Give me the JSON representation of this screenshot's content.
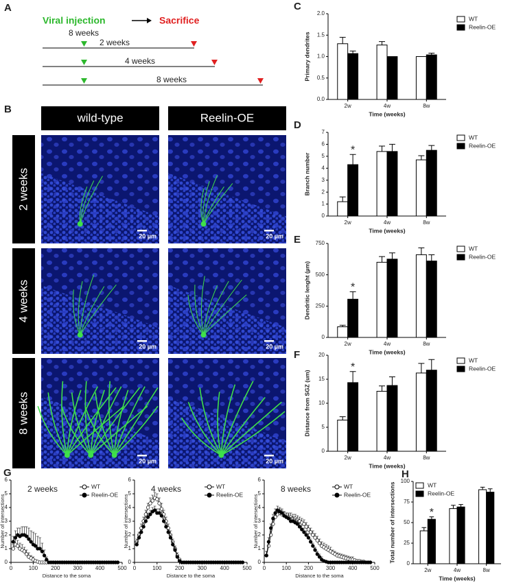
{
  "timeline": {
    "panel": "A",
    "start": "Viral injection",
    "end": "Sacrifice",
    "age": "8 weeks",
    "durations": [
      "2 weeks",
      "4 weeks",
      "8 weeks"
    ]
  },
  "images": {
    "panel": "B",
    "columns": [
      "wild-type",
      "Reelin-OE"
    ],
    "rows": [
      "2 weeks",
      "4 weeks",
      "8 weeks"
    ],
    "scale_bar": "20 µm"
  },
  "chart_data": [
    {
      "type": "bar",
      "panel": "C",
      "ylabel": "Primary dendrites",
      "xlabel": "Time (weeks)",
      "categories": [
        "2w",
        "4w",
        "8w"
      ],
      "legend": "right",
      "ylim": [
        0,
        2
      ],
      "yticks": [
        {
          "value": 0,
          "label": "0.0"
        },
        {
          "value": 0.5,
          "label": "0.5"
        },
        {
          "value": 1,
          "label": "1.0"
        },
        {
          "value": 1.5,
          "label": "1.5"
        },
        {
          "value": 2,
          "label": "2.0"
        }
      ],
      "series": [
        {
          "name": "WT",
          "color": "#ffffff",
          "values": [
            1.3,
            1.27,
            1.0
          ],
          "errors": [
            0.15,
            0.08,
            0
          ]
        },
        {
          "name": "Reelin-OE",
          "color": "#000000",
          "values": [
            1.07,
            1.0,
            1.04
          ],
          "errors": [
            0.06,
            0,
            0.04
          ]
        }
      ]
    },
    {
      "type": "bar",
      "panel": "D",
      "ylabel": "Branch number",
      "xlabel": "Time (weeks)",
      "categories": [
        "2w",
        "4w",
        "8w"
      ],
      "legend": "right",
      "annotation": "*",
      "ylim": [
        0,
        7
      ],
      "yticks": [
        0,
        1,
        2,
        3,
        4,
        5,
        6,
        7
      ],
      "series": [
        {
          "name": "WT",
          "color": "#ffffff",
          "values": [
            1.2,
            5.4,
            4.7
          ],
          "errors": [
            0.4,
            0.45,
            0.35
          ]
        },
        {
          "name": "Reelin-OE",
          "color": "#000000",
          "values": [
            4.3,
            5.4,
            5.5
          ],
          "errors": [
            0.85,
            0.6,
            0.4
          ]
        }
      ]
    },
    {
      "type": "bar",
      "panel": "E",
      "ylabel": "Dendritic lenght (µm)",
      "xlabel": "Time (weeks)",
      "categories": [
        "2w",
        "4w",
        "8w"
      ],
      "legend": "right",
      "annotation": "*",
      "ylim": [
        0,
        750
      ],
      "yticks": [
        0,
        250,
        500,
        750
      ],
      "series": [
        {
          "name": "WT",
          "color": "#ffffff",
          "values": [
            85,
            600,
            660
          ],
          "errors": [
            12,
            45,
            55
          ]
        },
        {
          "name": "Reelin-OE",
          "color": "#000000",
          "values": [
            305,
            625,
            610
          ],
          "errors": [
            60,
            50,
            50
          ]
        }
      ]
    },
    {
      "type": "bar",
      "panel": "F",
      "ylabel": "Distance from SGZ (um)",
      "xlabel": "Time (weeks)",
      "categories": [
        "2w",
        "4w",
        "8w"
      ],
      "legend": "right",
      "annotation": "*",
      "ylim": [
        0,
        20
      ],
      "yticks": [
        0,
        5,
        10,
        15,
        20
      ],
      "series": [
        {
          "name": "WT",
          "color": "#ffffff",
          "values": [
            6.5,
            12.5,
            16.3
          ],
          "errors": [
            0.7,
            1.1,
            2.0
          ]
        },
        {
          "name": "Reelin-OE",
          "color": "#000000",
          "values": [
            14.3,
            13.7,
            16.9
          ],
          "errors": [
            2.3,
            1.8,
            2.2
          ]
        }
      ]
    },
    {
      "type": "line",
      "panel": "G",
      "title": "2 weeks",
      "ylabel": "Number of intersections",
      "xlabel": "Distance to the soma",
      "legend": "upper right",
      "xlim": [
        0,
        500
      ],
      "xticks": [
        0,
        100,
        200,
        300,
        400,
        500
      ],
      "ylim": [
        0,
        6
      ],
      "yticks": [
        0,
        1,
        2,
        3,
        4,
        5,
        6
      ],
      "x": [
        10,
        20,
        30,
        40,
        50,
        60,
        70,
        80,
        90,
        100,
        110,
        120,
        130,
        140,
        150,
        160,
        170,
        180,
        190,
        200,
        210,
        220,
        230,
        240,
        250,
        260,
        270,
        280,
        290,
        300,
        310,
        320,
        330,
        340,
        350,
        360,
        370,
        380,
        390,
        400,
        410,
        420,
        430,
        440,
        450,
        460,
        470,
        480
      ],
      "series": [
        {
          "name": "WT",
          "color": "#ffffff",
          "values": [
            1.0,
            1.3,
            1.2,
            1.0,
            0.9,
            0.8,
            0.6,
            0.4,
            0.3,
            0.2,
            0.1,
            0.05,
            0,
            0,
            0,
            0,
            0,
            0,
            0,
            0,
            0,
            0,
            0,
            0,
            0,
            0,
            0,
            0,
            0,
            0,
            0,
            0,
            0,
            0,
            0,
            0,
            0,
            0,
            0,
            0,
            0,
            0,
            0,
            0,
            0,
            0,
            0,
            0
          ],
          "errors": [
            0.3,
            0.4,
            0.4,
            0.4,
            0.4,
            0.3,
            0.3,
            0.3,
            0.2,
            0.2,
            0.1,
            0.05,
            0,
            0,
            0,
            0,
            0,
            0,
            0,
            0,
            0,
            0,
            0,
            0,
            0,
            0,
            0,
            0,
            0,
            0,
            0,
            0,
            0,
            0,
            0,
            0,
            0,
            0,
            0,
            0,
            0,
            0,
            0,
            0,
            0,
            0,
            0,
            0
          ]
        },
        {
          "name": "Reelin-OE",
          "color": "#000000",
          "values": [
            1.5,
            1.8,
            2.0,
            1.9,
            2.0,
            2.0,
            1.9,
            1.7,
            1.5,
            1.3,
            1.2,
            1.0,
            1.0,
            0.8,
            0.5,
            0.2,
            0,
            0,
            0,
            0,
            0,
            0,
            0,
            0,
            0,
            0,
            0,
            0,
            0,
            0,
            0,
            0,
            0,
            0,
            0,
            0,
            0,
            0,
            0,
            0,
            0,
            0,
            0,
            0,
            0,
            0,
            0,
            0
          ],
          "errors": [
            0.4,
            0.5,
            0.5,
            0.6,
            0.6,
            0.6,
            0.7,
            0.8,
            0.8,
            0.9,
            0.9,
            0.9,
            0.8,
            0.6,
            0.4,
            0.2,
            0,
            0,
            0,
            0,
            0,
            0,
            0,
            0,
            0,
            0,
            0,
            0,
            0,
            0,
            0,
            0,
            0,
            0,
            0,
            0,
            0,
            0,
            0,
            0,
            0,
            0,
            0,
            0,
            0,
            0,
            0,
            0
          ]
        }
      ]
    },
    {
      "type": "line",
      "title": "4 weeks",
      "ylabel": "Number of intersections",
      "xlabel": "Distance to the soma",
      "legend": "upper right",
      "xlim": [
        0,
        500
      ],
      "xticks": [
        0,
        100,
        200,
        300,
        400,
        500
      ],
      "ylim": [
        0,
        6
      ],
      "yticks": [
        0,
        1,
        2,
        3,
        4,
        5,
        6
      ],
      "x": [
        10,
        20,
        30,
        40,
        50,
        60,
        70,
        80,
        90,
        100,
        110,
        120,
        130,
        140,
        150,
        160,
        170,
        180,
        190,
        200,
        210,
        220,
        230,
        240,
        250,
        260,
        270,
        280,
        290,
        300,
        310,
        320,
        330,
        340,
        350,
        360,
        370,
        380,
        390,
        400,
        410,
        420,
        430,
        440,
        450,
        460,
        470,
        480
      ],
      "series": [
        {
          "name": "WT",
          "color": "#ffffff",
          "values": [
            1.5,
            2.0,
            2.5,
            3.0,
            3.5,
            4.0,
            4.3,
            4.5,
            4.7,
            4.6,
            4.3,
            3.9,
            3.5,
            3.0,
            2.5,
            2.0,
            1.5,
            1.0,
            0.5,
            0.2,
            0,
            0,
            0,
            0,
            0,
            0,
            0,
            0,
            0,
            0,
            0,
            0,
            0,
            0,
            0,
            0,
            0,
            0,
            0,
            0,
            0,
            0,
            0,
            0,
            0,
            0,
            0,
            0
          ],
          "errors": [
            0.2,
            0.2,
            0.3,
            0.3,
            0.3,
            0.3,
            0.4,
            0.4,
            0.4,
            0.4,
            0.4,
            0.4,
            0.3,
            0.3,
            0.3,
            0.3,
            0.2,
            0.2,
            0.2,
            0.1,
            0,
            0,
            0,
            0,
            0,
            0,
            0,
            0,
            0,
            0,
            0,
            0,
            0,
            0,
            0,
            0,
            0,
            0,
            0,
            0,
            0,
            0,
            0,
            0,
            0,
            0,
            0,
            0
          ]
        },
        {
          "name": "Reelin-OE",
          "color": "#000000",
          "values": [
            1.3,
            1.8,
            2.2,
            2.6,
            3.0,
            3.3,
            3.5,
            3.7,
            3.8,
            3.6,
            3.6,
            3.4,
            3.0,
            2.6,
            2.2,
            1.8,
            1.3,
            0.9,
            0.4,
            0.1,
            0,
            0,
            0,
            0,
            0,
            0,
            0,
            0,
            0,
            0,
            0,
            0,
            0,
            0,
            0,
            0,
            0,
            0,
            0,
            0,
            0,
            0,
            0,
            0,
            0,
            0,
            0,
            0
          ],
          "errors": [
            0.2,
            0.2,
            0.2,
            0.3,
            0.3,
            0.3,
            0.3,
            0.3,
            0.3,
            0.3,
            0.3,
            0.3,
            0.3,
            0.3,
            0.2,
            0.2,
            0.2,
            0.2,
            0.1,
            0.1,
            0,
            0,
            0,
            0,
            0,
            0,
            0,
            0,
            0,
            0,
            0,
            0,
            0,
            0,
            0,
            0,
            0,
            0,
            0,
            0,
            0,
            0,
            0,
            0,
            0,
            0,
            0,
            0
          ]
        }
      ]
    },
    {
      "type": "line",
      "title": "8 weeks",
      "ylabel": "Number of intersections",
      "xlabel": "Distance to the soma",
      "legend": "upper right",
      "xlim": [
        0,
        500
      ],
      "xticks": [
        0,
        100,
        200,
        300,
        400,
        500
      ],
      "ylim": [
        0,
        6
      ],
      "yticks": [
        0,
        1,
        2,
        3,
        4,
        5,
        6
      ],
      "x": [
        10,
        20,
        30,
        40,
        50,
        60,
        70,
        80,
        90,
        100,
        110,
        120,
        130,
        140,
        150,
        160,
        170,
        180,
        190,
        200,
        210,
        220,
        230,
        240,
        250,
        260,
        270,
        280,
        290,
        300,
        310,
        320,
        330,
        340,
        350,
        360,
        370,
        380,
        390,
        400,
        410,
        420,
        430,
        440,
        450,
        460,
        470,
        480
      ],
      "series": [
        {
          "name": "WT",
          "color": "#ffffff",
          "values": [
            0.5,
            1.2,
            2.0,
            2.8,
            3.3,
            3.5,
            3.6,
            3.5,
            3.4,
            3.3,
            3.3,
            3.3,
            3.2,
            3.2,
            3.1,
            3.0,
            2.9,
            2.8,
            2.6,
            2.4,
            2.2,
            2.0,
            1.8,
            1.6,
            1.4,
            1.2,
            1.1,
            1.0,
            0.9,
            0.8,
            0.7,
            0.6,
            0.5,
            0.45,
            0.4,
            0.35,
            0.3,
            0.25,
            0.2,
            0.2,
            0.15,
            0.1,
            0.1,
            0.05,
            0.05,
            0,
            0,
            0
          ],
          "errors": [
            0.3,
            0.3,
            0.3,
            0.3,
            0.3,
            0.3,
            0.3,
            0.3,
            0.3,
            0.3,
            0.3,
            0.3,
            0.3,
            0.3,
            0.3,
            0.3,
            0.3,
            0.3,
            0.3,
            0.3,
            0.3,
            0.3,
            0.3,
            0.3,
            0.3,
            0.3,
            0.3,
            0.3,
            0.3,
            0.3,
            0.2,
            0.2,
            0.2,
            0.2,
            0.2,
            0.2,
            0.2,
            0.2,
            0.2,
            0.2,
            0.1,
            0.1,
            0.1,
            0.1,
            0.1,
            0,
            0,
            0
          ]
        },
        {
          "name": "Reelin-OE",
          "color": "#000000",
          "values": [
            0.5,
            1.5,
            2.5,
            3.2,
            3.6,
            3.8,
            3.7,
            3.6,
            3.4,
            3.3,
            3.2,
            3.0,
            3.0,
            2.9,
            2.8,
            2.6,
            2.4,
            2.2,
            2.0,
            1.8,
            1.5,
            1.2,
            0.9,
            0.6,
            0.4,
            0.2,
            0.1,
            0.05,
            0,
            0,
            0,
            0,
            0,
            0,
            0,
            0,
            0,
            0,
            0,
            0,
            0,
            0,
            0,
            0,
            0,
            0,
            0,
            0
          ],
          "errors": [
            0.3,
            0.3,
            0.3,
            0.3,
            0.3,
            0.3,
            0.3,
            0.3,
            0.3,
            0.3,
            0.3,
            0.3,
            0.3,
            0.3,
            0.3,
            0.3,
            0.3,
            0.3,
            0.3,
            0.3,
            0.2,
            0.2,
            0.2,
            0.2,
            0.2,
            0.2,
            0.1,
            0.1,
            0,
            0,
            0,
            0,
            0,
            0,
            0,
            0,
            0,
            0,
            0,
            0,
            0,
            0,
            0,
            0,
            0,
            0,
            0,
            0
          ]
        }
      ]
    },
    {
      "type": "bar",
      "panel": "H",
      "ylabel": "Total number of intersections",
      "xlabel": "Time (weeks)",
      "categories": [
        "2w",
        "4w",
        "8w"
      ],
      "legend": "upper left",
      "annotation": "*",
      "ylim": [
        0,
        100
      ],
      "yticks": [
        0,
        25,
        50,
        75,
        100
      ],
      "series": [
        {
          "name": "WT",
          "color": "#ffffff",
          "values": [
            40,
            67,
            90
          ],
          "errors": [
            4,
            4,
            3
          ]
        },
        {
          "name": "Reelin-OE",
          "color": "#000000",
          "values": [
            54,
            69,
            87
          ],
          "errors": [
            3,
            3,
            4
          ]
        }
      ]
    }
  ]
}
